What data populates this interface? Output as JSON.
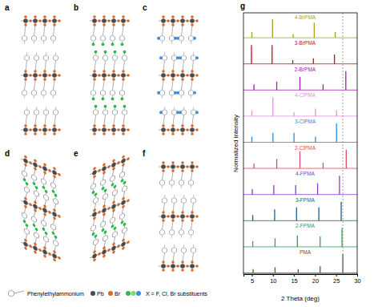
{
  "panels": [
    {
      "label": "a"
    },
    {
      "label": "b",
      "color": "#2db84a"
    },
    {
      "label": "c",
      "color": "#3a8ee0"
    },
    {
      "label": "d",
      "color": "#2db84a"
    },
    {
      "label": "e",
      "color": "#2db84a"
    },
    {
      "label": "f"
    }
  ],
  "key": {
    "molecule": "Phenylethylammonium",
    "pb": "Pb",
    "br": "Br",
    "substituents": "X = F, Cl, Br substituents"
  },
  "chart_data": {
    "type": "stem",
    "panel_label": "g",
    "xlabel": "2 Theta (deg)",
    "ylabel": "Normalized intensity",
    "xlim": [
      3,
      30
    ],
    "xticks": [
      5,
      10,
      15,
      20,
      25,
      30
    ],
    "ylim": [
      0,
      1
    ],
    "tick_labels": "x",
    "vlines": [
      26.6
    ],
    "series": [
      {
        "name": "4-BrPMA",
        "color": "#a3a31f",
        "x": [
          5.0,
          9.9,
          14.8,
          19.8,
          24.8
        ],
        "values": [
          0.3,
          1.0,
          0.2,
          0.8,
          0.3
        ]
      },
      {
        "name": "3-BrPMA",
        "color": "#cc0a1e",
        "x": [
          4.9,
          9.8,
          14.7,
          19.6,
          24.6
        ],
        "values": [
          1.0,
          1.0,
          0.2,
          0.3,
          0.5
        ]
      },
      {
        "name": "2-BrPMA",
        "color": "#a020b0",
        "x": [
          5.5,
          10.9,
          16.4,
          21.9,
          27.3
        ],
        "values": [
          0.3,
          0.45,
          0.7,
          0.3,
          1.0
        ]
      },
      {
        "name": "4-ClPMA",
        "color": "#e58fe0",
        "x": [
          5.0,
          10.0,
          15.0,
          20.1,
          25.1
        ],
        "values": [
          0.3,
          1.0,
          0.2,
          0.4,
          0.3
        ]
      },
      {
        "name": "3-ClPMA",
        "color": "#2e8bd6",
        "x": [
          5.0,
          10.0,
          15.0,
          20.1,
          25.1
        ],
        "values": [
          0.3,
          0.5,
          0.5,
          0.3,
          1.0
        ]
      },
      {
        "name": "2-ClPMA",
        "color": "#e04a5f",
        "x": [
          5.5,
          10.9,
          16.4,
          21.9,
          27.4
        ],
        "values": [
          0.25,
          0.5,
          0.9,
          0.3,
          1.0
        ]
      },
      {
        "name": "4-FPMA",
        "color": "#8a3cc8",
        "x": [
          5.1,
          10.2,
          15.4,
          20.6,
          25.8
        ],
        "values": [
          0.3,
          0.5,
          0.5,
          0.6,
          1.0
        ]
      },
      {
        "name": "3-FPMA",
        "color": "#1e5e8e",
        "x": [
          5.2,
          10.4,
          15.6,
          20.9,
          26.2
        ],
        "values": [
          0.3,
          0.6,
          0.7,
          0.7,
          1.0
        ]
      },
      {
        "name": "2-FPMA",
        "color": "#2ea05a",
        "x": [
          5.2,
          10.5,
          15.8,
          21.2,
          26.4
        ],
        "values": [
          0.3,
          0.45,
          0.6,
          0.55,
          1.0
        ]
      },
      {
        "name": "PMA",
        "color": "#555555",
        "x": [
          5.3,
          10.5,
          16.0,
          21.2,
          26.6
        ],
        "values": [
          0.2,
          0.3,
          0.2,
          0.35,
          1.0
        ]
      }
    ]
  }
}
